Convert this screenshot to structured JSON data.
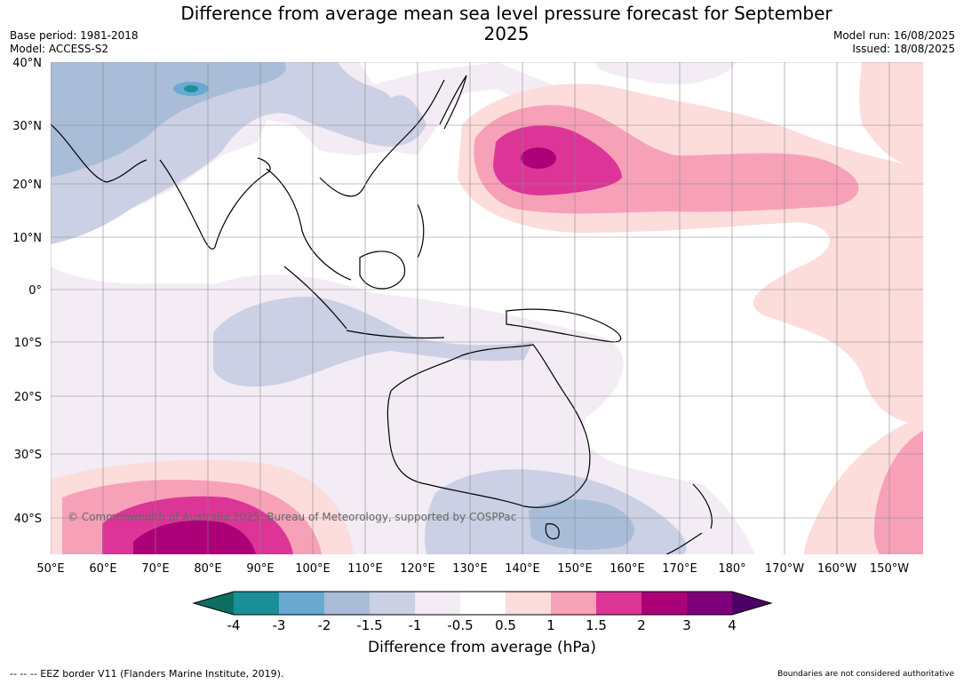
{
  "title": "Difference from average mean sea level pressure forecast for September 2025",
  "meta_left": {
    "base_period": "Base period: 1981-2018",
    "model": "Model: ACCESS-S2"
  },
  "meta_right": {
    "model_run": "Model run: 16/08/2025",
    "issued": "Issued: 18/08/2025"
  },
  "copyright": "© Commonwealth of Australia 2025, Bureau of Meteorology, supported by COSPPac",
  "lat_labels": [
    "40°N",
    "30°N",
    "20°N",
    "10°N",
    "0°",
    "10°S",
    "20°S",
    "30°S",
    "40°S"
  ],
  "lon_labels": [
    "50°E",
    "60°E",
    "70°E",
    "80°E",
    "90°E",
    "100°E",
    "110°E",
    "120°E",
    "130°E",
    "140°E",
    "150°E",
    "160°E",
    "170°E",
    "180°",
    "170°W",
    "160°W",
    "150°W"
  ],
  "colorbar": {
    "title": "Difference from average (hPa)",
    "ticks": [
      "-4",
      "-3",
      "-2",
      "-1.5",
      "-1",
      "-0.5",
      "0.5",
      "1",
      "1.5",
      "2",
      "3",
      "4"
    ],
    "colors": [
      "#0e6e5f",
      "#1b8f98",
      "#6aaad2",
      "#a9bdd8",
      "#ccd0e4",
      "#f3ecf5",
      "#ffffff",
      "#fddcdc",
      "#f7a1b8",
      "#dc3597",
      "#ac0079",
      "#7d007a",
      "#4d0066"
    ]
  },
  "footer_left": "--  --  -- EEZ border V11 (Flanders Marine Institute, 2019).",
  "footer_right": "Boundaries are not considered authoritative"
}
